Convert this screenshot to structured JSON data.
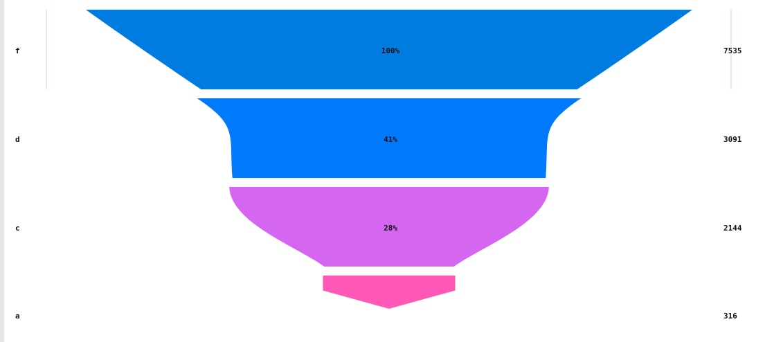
{
  "chart_data": {
    "type": "funnel",
    "categories": [
      "f",
      "d",
      "c",
      "a"
    ],
    "values": [
      7535,
      3091,
      2144,
      316
    ],
    "percent_labels": [
      "100%",
      "41%",
      "28%",
      ""
    ],
    "colors": [
      "#007bdf",
      "#0079fb",
      "#d466ef",
      "#ff58b6"
    ],
    "grid": false,
    "legend": "none"
  }
}
